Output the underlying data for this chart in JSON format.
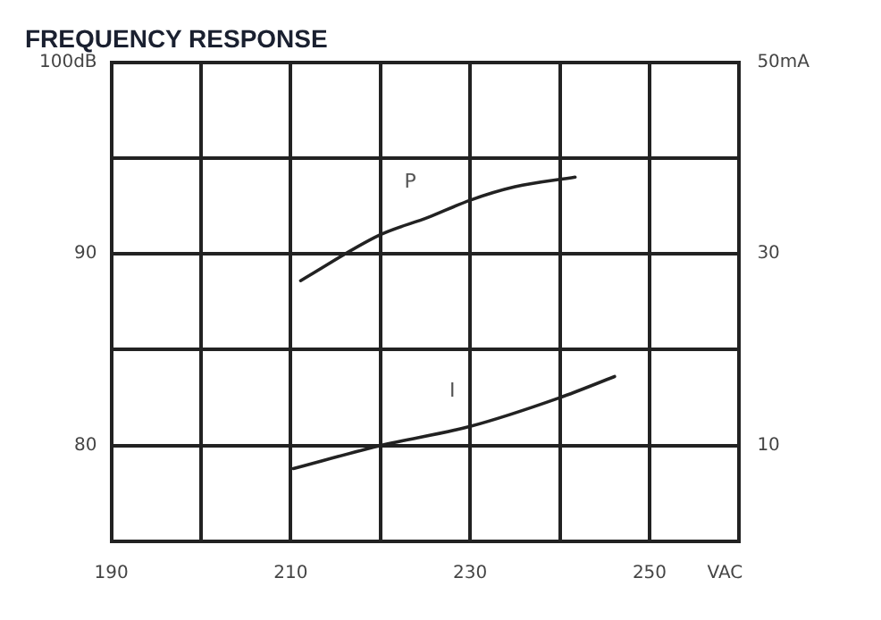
{
  "chart_data": {
    "type": "line",
    "title": "FREQUENCY RESPONSE",
    "xlabel": "VAC",
    "xlim": [
      190,
      260
    ],
    "xticks": [
      190,
      {
        "value": 200,
        "label": null
      },
      210,
      {
        "value": 220,
        "label": null
      },
      230,
      {
        "value": 240,
        "label": null
      },
      250,
      {
        "value": 260,
        "label": null
      }
    ],
    "ylim": [
      75,
      100
    ],
    "yticks": [
      80,
      {
        "value": 85,
        "label": null
      },
      90,
      {
        "value": 95,
        "label": null
      },
      {
        "value": 100,
        "label": "100dB"
      }
    ],
    "y2lim": [
      0,
      50
    ],
    "y2ticks": [
      10,
      30,
      {
        "value": 50,
        "label": "50mA"
      }
    ],
    "series": [
      {
        "name": "P",
        "color": "#222222",
        "x": [
          211.1,
          220,
          225.3,
          230,
          235,
          241.7
        ],
        "values": [
          88.6,
          91.0,
          91.9,
          92.8,
          93.5,
          94.0
        ]
      },
      {
        "name": "I",
        "color": "#222222",
        "axis": "y2",
        "x": [
          210.3,
          220,
          230,
          240,
          246.1
        ],
        "values": [
          7.6,
          10.0,
          12.0,
          15.0,
          17.2
        ]
      }
    ],
    "grid": true,
    "legend": false,
    "marker": "none",
    "line_style": "solid"
  }
}
